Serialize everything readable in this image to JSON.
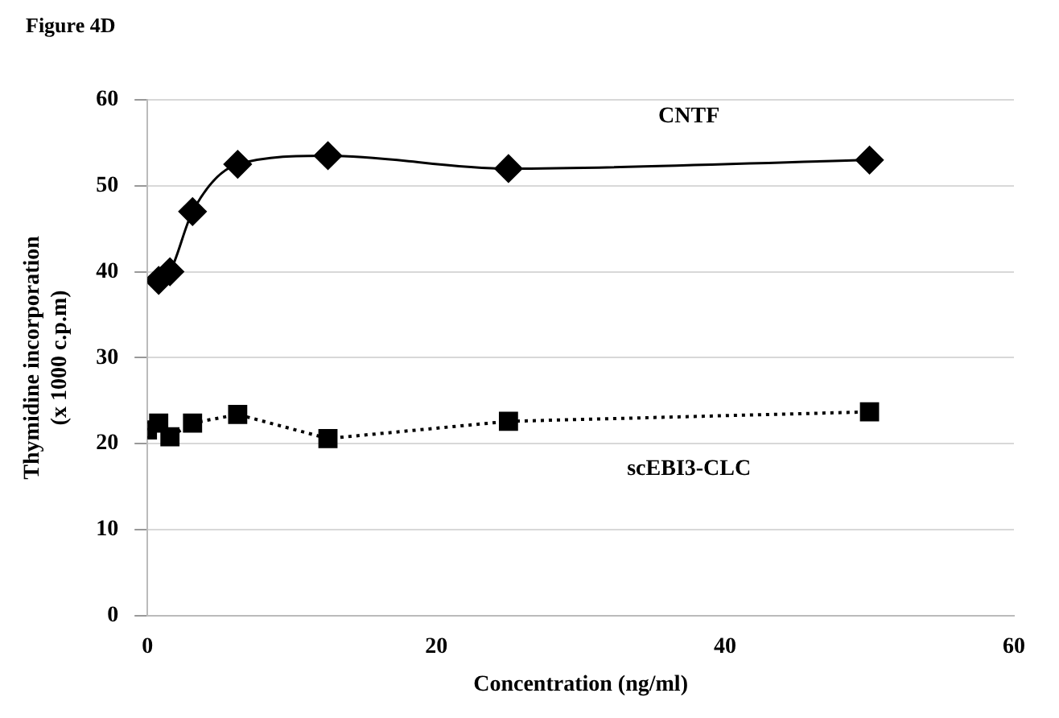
{
  "chart_data": {
    "type": "line",
    "title": "Figure 4D",
    "xlabel": "Concentration (ng/ml)",
    "ylabel": "Thymidine incorporation\n(x 1000 c.p.m)",
    "x": [
      0,
      0.78,
      1.56,
      3.125,
      6.25,
      12.5,
      25,
      50
    ],
    "series": [
      {
        "name": "CNTF",
        "color": "#000000",
        "marker": "diamond",
        "line_style": "solid",
        "values": [
          null,
          39,
          40,
          47,
          52.5,
          53.5,
          52,
          53
        ]
      },
      {
        "name": "scEBI3-CLC",
        "color": "#000000",
        "marker": "square",
        "line_style": "dotted",
        "values": [
          21.6,
          22.4,
          20.8,
          22.4,
          23.4,
          20.6,
          22.6,
          23.7
        ]
      }
    ],
    "xlim": [
      0,
      60
    ],
    "xticks": [
      0,
      20,
      40,
      60
    ],
    "ylim": [
      0,
      60
    ],
    "yticks": [
      0,
      10,
      20,
      30,
      40,
      50,
      60
    ],
    "grid": "y",
    "legend": false
  }
}
